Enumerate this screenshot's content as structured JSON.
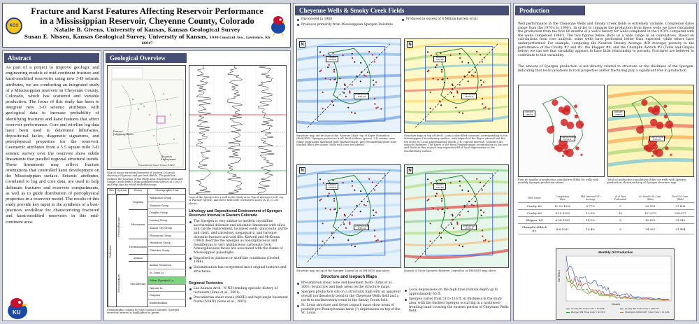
{
  "title": {
    "line1": "Fracture and Karst Features Affecting Reservoir Performance",
    "line2": "in a Mississippian Reservoir, Cheyenne County, Colorado",
    "author1": "Natalie B. Givens, University of Kansas, Kansas Geological Survey",
    "author2": "Susan E. Nissen, Kansas Geological Survey, University of Kansas,",
    "address": "1930 Constant Ave., Lawrence, KS 66047"
  },
  "logos": {
    "kgs": "KGS",
    "ku": "KU"
  },
  "abstract": {
    "heading": "Abstract",
    "body": "As part of a project to improve geologic and engineering models of mid-continent fracture and karst-modified reservoirs using new 3-D seismic attributes, we are conducting an integrated study of a Mississippian reservoir in Cheyenne County, Colorado, which has scattered and variable production. The focus of this study has been to integrate new 3-D seismic attributes with geological data to increase probability of identifying fractures and karst features that affect reservoir performance. Core and wireline log data have been used to determine lithofacies, depositional facies, diagenetic signatures, and petrophysical properties for the reservoir. Geometric attributes from a 5.5 square mile 3-D seismic survey over the reservoir show subtle lineaments that parallel regional structural trends. These lineaments may reflect fracture orientations that controlled karst development on the Mississippian surface. Seismic attributes, correlated to log and core data, are used to help delineate fractures and reservoir compartments, as well as to guide distribution of petrophysical properties in a reservoir model. The results of this study provide key input to the synthesis of a best-practices workflow for characterizing fractured and karst-modified reservoirs in this mid-continent area."
  },
  "geo": {
    "heading": "Geological Overview",
    "map_caption": "Map of major structural features of eastern Colorado showing oil (green) and gas (red) fields. The pink box outlines the location of the study area (Cheyenne Wells and Smoky Creek fields). Map modified from Sims et al. (2001) and http://igs.ku.edu/d-ae/defiles/maps.",
    "map_labels": {
      "bb": "Denver-Julesburg Basin",
      "ha": "Hugoton Embayment",
      "leg1": "Precambrian Shear Zones (N34W)",
      "leg2": "Basement Faults (N34W)"
    },
    "strat_headers": [
      "Era",
      "System",
      "Series",
      "Stratigraphic Unit"
    ],
    "strat_units": [
      "Wabaunsee Group",
      "Shawnee Group",
      "Douglas Group",
      "Lansing Group",
      "Kansas City Group",
      "Pleasanton Group",
      "Marmaton Group",
      "Cherokee Group",
      "",
      "Atokan Formation",
      "St. Louis Ls.",
      "Salem (Spergen) Ls.",
      "Warsaw Ls.",
      "Osagean",
      "Kinderhookian"
    ],
    "strat_series": [
      "Virgilian",
      "Missourian",
      "Desmoinesian",
      "Atokan",
      "Meramecian"
    ],
    "strat_systems": [
      "Pennsylvanian",
      "Mississippian"
    ],
    "strat_era": "Paleozoic",
    "strat_caption": "Stratigraphic column for east-central Colorado. Spergen reservoir interval is highlighted in green.",
    "log_caption": "Logs of the Spergen for a well in the study area. Top of Spergen (red), top of Warsaw (green), and three field wide correlative zones (A, B, C) are shown.",
    "litho_heading": "Lithology and Depositional Environment of Spergen Reservoir Interval in Eastern Colorado",
    "litho_bullets": [
      "The Spergen is very similar to modern crystalline saccharoidal dolomite and dolomitic limestone with silica and calcite replacement, localized ooids, glauconite, pyrite and chert, and calcedony, megaquartz, and baroque dolomite fracture and void fills. Kidwell and McKenna (1983) describe the Spergen as nonargillaceous and fossiliferous to very argillaceous carbonate rock. Nonargillaceous facies are associated with the flanks of Mississippian paleohighs.",
      "Deposited in platform or shelf-like conditions (Goebel, 1966).",
      "Dolomitization has overprinted most original textures and structures."
    ],
    "tect_heading": "Regional Tectonics",
    "tect_bullets": [
      "Las Animas Arch - N-NE trending episodic history of tectonism (Sims et al., 2001).",
      "Precambrian shear zones (N60E) and high-angle basement faults (N34W) (Sims et al., 2001)."
    ]
  },
  "fields": {
    "heading": "Cheyenne Wells & Smoky Creek Fields",
    "bullets": [
      "Discovered in 1968",
      "Produced in excess of 8 Million barrels of oil",
      "Produces primarily from Mississippian Spergen Dolomite"
    ],
    "cap1": "Structure map on the base of the 'Morrow Shale' top of Keyes Formation (RMS/KYS). Spergen producers (red), field outlines (green), 3-D seismic area (blue), high-angle basement fault (dashed black), and Precambrian shear zone (dashed blue) are shown. Wells with core are labeled.",
    "cap2": "Structure map on top of the St. Louis (color filled contours) corresponding to the Mississippian Unconformity surface, with isopach of the Keyes interval and the top of the St. Louis superimposed (black, 5 ft. contour interval). Numbers are isopach thickness. The Keyes is the basal Pennsylvanian accumulation in the area and thicks in this isopach may represent fill of local depressions on the unconformity surface.",
    "cap3": "Structure map on top of the Spergen. Legend as on RMS/KYS map above.",
    "cap4": "Isopach of Gross Spergen thickness. Legend as on RMS/KYS map above.",
    "struct_heading": "Structure and Isopach Maps",
    "struct_left": [
      "Precambrian shear zone and basement faults (Sims et al., 2001) bound low and high areas on the structure maps.",
      "Spergen production sits on a structural high with an apparent overall northeasterly trend in the Cheyenne Wells field and a north to northwesterly trend in the Smoky Creek field.",
      "St. Louis structure and Keyes isopach maps show areas of possible pre-Pennsylvanian karst (?) depressions on top of the St. Louis."
    ],
    "struct_right": [
      "Local depressions on the high have relative depth up to approximately 65 ft.",
      "Spergen varies from 51 to 116 ft. in thickness in the study area, with the thickest Spergen occurring in a northwest-trending band covering the eastern portion of Cheyenne Wells field."
    ],
    "labels": {
      "smoky": "SMOKY CREEK",
      "cheyenne": "CHEYENNE WELLS",
      "north": "N"
    }
  },
  "production": {
    "heading": "Production",
    "p1": "Well performance in the Cheyenne Wells and Smoky Creek fields is extremely variable. Completion dates range from the 1970's to 1990's. In order to compare the production from these wells we have calculated the production from the first 60 months of a well's history for wells completed in the 1970's compared with the wells completed 1990's. The two figures below show us a wide range in oil cumulatives. Based on calculations from core analysis, some wells have performed better than expected, while others have underperformed. For example, comparing the Neutron Density Average (ND Average) porosity to the performance of the Crosby #2 and #3, the Klepper #4, and the Champlin Aldrich #3 (Table and Graphs below) we can see that variability appears to have little relationship to porosity. Fractures are believed to contribute to this variability.",
    "p2": "The amount of Spergen production is not directly related to structure or the thickness of the Spergen, indicating that local variations in rock properties and/or fracturing play a significant role in production.",
    "map_cap1": "First 60 months of production cumulatives (bbls) for wells with monthly Spergen production values.",
    "map_cap2": "Total oil production cumulatives (bbls) for wells with Spergen production; shown with top of Spergen structure map.",
    "labels": {
      "smoky": "SMOKY CREEK",
      "cheyenne": "CHEYENNE WELLS"
    },
    "table": {
      "headers": [
        "Well Name",
        "Completion Date",
        "Phil Inferred ND Average",
        "# of Feet Perforated",
        "60 Month Oil Cum. (bbls)",
        "Total Oil Cum. (bbls)"
      ],
      "rows": [
        [
          "Crosby #2",
          "12-20-1992",
          "8.77%",
          "5",
          "65,559",
          "97,806"
        ],
        [
          "Crosby #3",
          "8-15-1993",
          "12.0%",
          "10",
          "137,975",
          "208,977"
        ],
        [
          "Klepper #4",
          "6-28-1993",
          "14.1%",
          "8",
          "42,875",
          "93,910"
        ],
        [
          "Champlin Aldrich #3",
          "8-6-1991",
          "16.4%",
          "8",
          "34,387",
          "91,434"
        ]
      ]
    },
    "chart_title": "Monthly Oil Production",
    "chart_xlabel": "Month",
    "chart_ylabel": "Oil (BBL)",
    "chart_legend": [
      "Crosby #2 Total Cum = 97,806",
      "Crosby #3 Total Cum = 208,977",
      "Klepper #4 Total Cum = 93,910",
      "Champlin Aldrich #3 Total Cum = 91,434"
    ],
    "chart_colors": [
      "#c02020",
      "#2040c0",
      "#20a030",
      "#c08020"
    ]
  }
}
